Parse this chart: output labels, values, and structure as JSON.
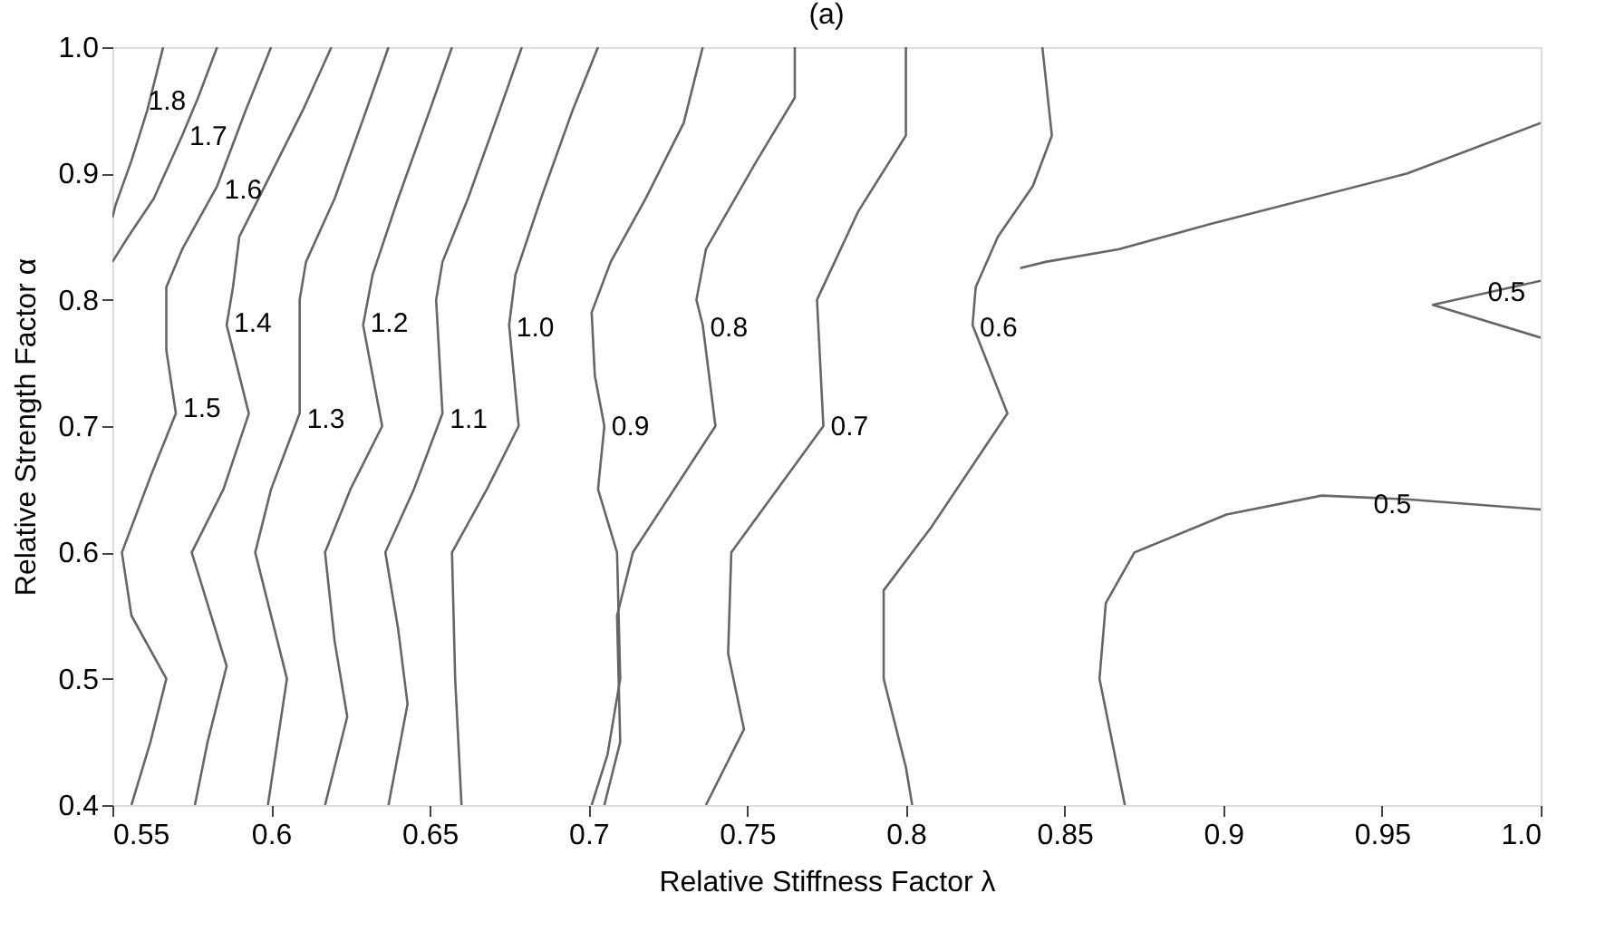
{
  "chart_data": {
    "type": "line",
    "title": "(a)",
    "xlabel": "Relative Stiffness Factor λ",
    "ylabel": "Relative Strength Factor α",
    "xlim": [
      0.55,
      1.0
    ],
    "ylim": [
      0.4,
      1.0
    ],
    "xticks": [
      0.55,
      0.6,
      0.65,
      0.7,
      0.75,
      0.8,
      0.85,
      0.9,
      0.95,
      {
        "value": 1.0,
        "label": "1.0"
      }
    ],
    "yticks": [
      0.4,
      0.5,
      0.6,
      0.7,
      0.8,
      0.9,
      {
        "value": 1.0,
        "label": "1.0"
      }
    ],
    "grid": false,
    "marker": "none",
    "line_style": "solid",
    "series": [
      {
        "color": "#666666",
        "x": [
          0.566,
          0.561,
          0.556,
          0.551,
          0.55
        ],
        "values": [
          1.0,
          0.95,
          0.91,
          0.875,
          0.865
        ]
      },
      {
        "color": "#666666",
        "x": [
          0.583,
          0.577,
          0.572,
          0.563,
          0.555,
          0.55
        ],
        "values": [
          1.0,
          0.96,
          0.93,
          0.88,
          0.85,
          0.83
        ]
      },
      {
        "color": "#666666",
        "x": [
          0.6,
          0.592,
          0.583,
          0.572,
          0.567,
          0.567,
          0.57,
          0.562,
          0.553,
          0.556,
          0.567,
          0.562,
          0.556
        ],
        "values": [
          1.0,
          0.95,
          0.89,
          0.84,
          0.81,
          0.76,
          0.71,
          0.66,
          0.6,
          0.55,
          0.5,
          0.45,
          0.4
        ]
      },
      {
        "color": "#666666",
        "x": [
          0.619,
          0.61,
          0.6,
          0.59,
          0.588,
          0.586,
          0.593,
          0.585,
          0.575,
          0.586,
          0.58,
          0.576
        ],
        "values": [
          1.0,
          0.95,
          0.9,
          0.85,
          0.81,
          0.78,
          0.71,
          0.65,
          0.6,
          0.51,
          0.45,
          0.4
        ]
      },
      {
        "color": "#666666",
        "x": [
          0.637,
          0.63,
          0.62,
          0.611,
          0.609,
          0.609,
          0.6,
          0.595,
          0.605,
          0.599
        ],
        "values": [
          1.0,
          0.95,
          0.88,
          0.83,
          0.8,
          0.71,
          0.65,
          0.6,
          0.5,
          0.4
        ]
      },
      {
        "color": "#666666",
        "x": [
          0.657,
          0.65,
          0.64,
          0.632,
          0.629,
          0.635,
          0.625,
          0.617,
          0.62,
          0.624,
          0.617
        ],
        "values": [
          1.0,
          0.95,
          0.88,
          0.82,
          0.78,
          0.7,
          0.65,
          0.6,
          0.53,
          0.47,
          0.4
        ]
      },
      {
        "color": "#666666",
        "x": [
          0.679,
          0.672,
          0.662,
          0.654,
          0.652,
          0.654,
          0.645,
          0.636,
          0.64,
          0.643,
          0.637
        ],
        "values": [
          1.0,
          0.95,
          0.88,
          0.83,
          0.8,
          0.71,
          0.65,
          0.6,
          0.54,
          0.48,
          0.4
        ]
      },
      {
        "color": "#666666",
        "x": [
          0.703,
          0.695,
          0.685,
          0.677,
          0.675,
          0.678,
          0.668,
          0.657,
          0.658,
          0.66
        ],
        "values": [
          1.0,
          0.95,
          0.88,
          0.82,
          0.78,
          0.7,
          0.65,
          0.6,
          0.5,
          0.4
        ]
      },
      {
        "color": "#666666",
        "x": [
          0.736,
          0.73,
          0.718,
          0.707,
          0.701,
          0.702,
          0.705,
          0.703,
          0.709,
          0.71,
          0.706,
          0.701
        ],
        "values": [
          1.0,
          0.94,
          0.88,
          0.83,
          0.79,
          0.74,
          0.7,
          0.65,
          0.6,
          0.5,
          0.44,
          0.4
        ]
      },
      {
        "color": "#666666",
        "x": [
          0.765,
          0.765,
          0.753,
          0.737,
          0.734,
          0.736,
          0.74,
          0.714,
          0.709,
          0.71,
          0.705
        ],
        "values": [
          1.0,
          0.96,
          0.91,
          0.84,
          0.8,
          0.78,
          0.7,
          0.6,
          0.55,
          0.45,
          0.4
        ]
      },
      {
        "color": "#666666",
        "x": [
          0.8,
          0.8,
          0.785,
          0.772,
          0.774,
          0.745,
          0.744,
          0.749,
          0.737
        ],
        "values": [
          1.0,
          0.93,
          0.87,
          0.8,
          0.7,
          0.6,
          0.52,
          0.46,
          0.4
        ]
      },
      {
        "color": "#666666",
        "x": [
          0.843,
          0.846,
          0.84,
          0.829,
          0.822,
          0.821,
          0.832,
          0.808,
          0.793,
          0.793,
          0.8,
          0.802
        ],
        "values": [
          1.0,
          0.93,
          0.89,
          0.85,
          0.81,
          0.78,
          0.71,
          0.62,
          0.57,
          0.5,
          0.43,
          0.4
        ]
      },
      {
        "color": "#666666",
        "x": [
          1.0,
          0.958,
          0.896,
          0.867,
          0.844,
          0.836
        ],
        "values": [
          0.94,
          0.9,
          0.86,
          0.84,
          0.83,
          0.825
        ]
      },
      {
        "color": "#666666",
        "x": [
          0.869,
          0.861,
          0.863,
          0.872,
          0.901,
          0.931,
          0.958,
          1.0
        ],
        "values": [
          0.4,
          0.5,
          0.56,
          0.6,
          0.63,
          0.645,
          0.642,
          0.634
        ]
      },
      {
        "color": "#666666",
        "x": [
          1.0,
          0.966,
          1.0
        ],
        "values": [
          0.815,
          0.796,
          0.77
        ]
      }
    ],
    "annotations": [
      {
        "text": "1.8",
        "x": 0.559,
        "y": 0.958
      },
      {
        "text": "1.7",
        "x": 0.572,
        "y": 0.93
      },
      {
        "text": "1.6",
        "x": 0.583,
        "y": 0.887
      },
      {
        "text": "1.5",
        "x": 0.57,
        "y": 0.714
      },
      {
        "text": "1.4",
        "x": 0.586,
        "y": 0.782
      },
      {
        "text": "1.3",
        "x": 0.609,
        "y": 0.706
      },
      {
        "text": "1.2",
        "x": 0.629,
        "y": 0.782
      },
      {
        "text": "1.1",
        "x": 0.654,
        "y": 0.706
      },
      {
        "text": "1.0",
        "x": 0.675,
        "y": 0.778
      },
      {
        "text": "0.9",
        "x": 0.705,
        "y": 0.7
      },
      {
        "text": "0.8",
        "x": 0.736,
        "y": 0.778
      },
      {
        "text": "0.7",
        "x": 0.774,
        "y": 0.7
      },
      {
        "text": "0.6",
        "x": 0.821,
        "y": 0.778
      },
      {
        "text": "0.5",
        "x": 0.981,
        "y": 0.806
      },
      {
        "text": "0.5",
        "x": 0.945,
        "y": 0.638
      }
    ]
  }
}
